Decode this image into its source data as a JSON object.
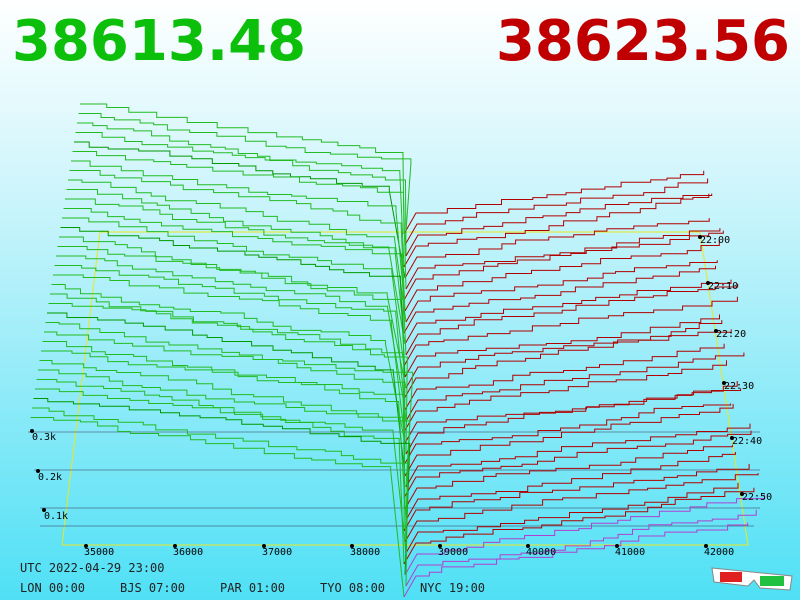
{
  "header": {
    "bid": "38613.48",
    "ask": "38623.56"
  },
  "price_axis": [
    "35000",
    "36000",
    "37000",
    "38000",
    "39000",
    "40000",
    "41000",
    "42000"
  ],
  "depth_axis": [
    "0.3k",
    "0.2k",
    "0.1k"
  ],
  "time_axis": [
    "22:00",
    "22:10",
    "22:20",
    "22:30",
    "22:40",
    "22:50"
  ],
  "footer": {
    "utc": "UTC 2022-04-29 23:00",
    "zones": [
      "LON 00:00",
      "BJS 07:00",
      "PAR 01:00",
      "TYO 08:00",
      "NYC 19:00"
    ]
  }
}
